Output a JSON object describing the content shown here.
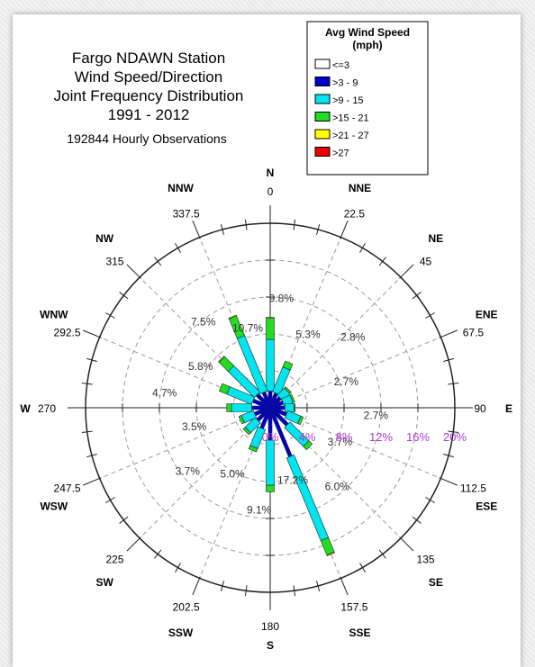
{
  "chart_data": {
    "type": "wind-rose",
    "title_lines": [
      "Fargo NDAWN Station",
      "Wind Speed/Direction",
      "Joint Frequency Distribution",
      "1991 - 2012"
    ],
    "subtitle": "192844 Hourly Observations",
    "legend": {
      "title_lines": [
        "Avg Wind Speed",
        "(mph)"
      ],
      "items": [
        {
          "label": "<=3",
          "color": "#ffffff"
        },
        {
          "label": ">3 - 9",
          "color": "#0000c8"
        },
        {
          "label": ">9 - 15",
          "color": "#00e5ef"
        },
        {
          "label": ">15 - 21",
          "color": "#22dd22"
        },
        {
          "label": ">21 - 27",
          "color": "#ffff00"
        },
        {
          "label": ">27",
          "color": "#ee0000"
        }
      ]
    },
    "rings": [
      4,
      8,
      12,
      16,
      20
    ],
    "max": 20,
    "scale_labels": [
      "0%",
      "4%",
      "8%",
      "12%",
      "16%",
      "20%"
    ],
    "directions": [
      {
        "name": "N",
        "deg": "0",
        "pct": "9.8%",
        "segments": [
          0.2,
          1.6,
          5.6,
          2.3,
          0.1,
          0
        ]
      },
      {
        "name": "NNE",
        "deg": "22.5",
        "pct": "5.3%",
        "segments": [
          0.2,
          1.5,
          2.9,
          0.7,
          0,
          0
        ]
      },
      {
        "name": "NE",
        "deg": "45",
        "pct": "2.8%",
        "segments": [
          0.2,
          1.3,
          1.1,
          0.2,
          0,
          0
        ]
      },
      {
        "name": "ENE",
        "deg": "67.5",
        "pct": "2.7%",
        "segments": [
          0.2,
          1.3,
          1.0,
          0.2,
          0,
          0
        ]
      },
      {
        "name": "E",
        "deg": "90",
        "pct": "2.7%",
        "segments": [
          0.2,
          1.4,
          1.0,
          0.1,
          0,
          0
        ]
      },
      {
        "name": "ESE",
        "deg": "112.5",
        "pct": "3.7%",
        "segments": [
          0.2,
          1.7,
          1.5,
          0.3,
          0,
          0
        ]
      },
      {
        "name": "SE",
        "deg": "135",
        "pct": "6.0%",
        "segments": [
          0.2,
          2.4,
          2.9,
          0.5,
          0,
          0
        ]
      },
      {
        "name": "SSE",
        "deg": "157.5",
        "pct": "17.2%",
        "segments": [
          0.3,
          5.4,
          9.7,
          1.7,
          0.1,
          0
        ]
      },
      {
        "name": "S",
        "deg": "180",
        "pct": "9.1%",
        "segments": [
          0.2,
          3.3,
          4.9,
          0.7,
          0,
          0
        ]
      },
      {
        "name": "SSW",
        "deg": "202.5",
        "pct": "5.0%",
        "segments": [
          0.2,
          2.2,
          2.2,
          0.4,
          0,
          0
        ]
      },
      {
        "name": "SW",
        "deg": "225",
        "pct": "3.7%",
        "segments": [
          0.2,
          1.7,
          1.5,
          0.3,
          0,
          0
        ]
      },
      {
        "name": "WSW",
        "deg": "247.5",
        "pct": "3.5%",
        "segments": [
          0.2,
          1.6,
          1.4,
          0.3,
          0,
          0
        ]
      },
      {
        "name": "W",
        "deg": "270",
        "pct": "4.7%",
        "segments": [
          0.2,
          1.8,
          2.2,
          0.5,
          0,
          0
        ]
      },
      {
        "name": "WNW",
        "deg": "292.5",
        "pct": "5.8%",
        "segments": [
          0.2,
          1.8,
          2.9,
          0.9,
          0,
          0
        ]
      },
      {
        "name": "NW",
        "deg": "315",
        "pct": "7.5%",
        "segments": [
          0.2,
          1.8,
          4.0,
          1.4,
          0.1,
          0
        ]
      },
      {
        "name": "NNW",
        "deg": "337.5",
        "pct": "10.7%",
        "segments": [
          0.2,
          1.6,
          6.5,
          2.3,
          0.1,
          0
        ]
      }
    ]
  }
}
